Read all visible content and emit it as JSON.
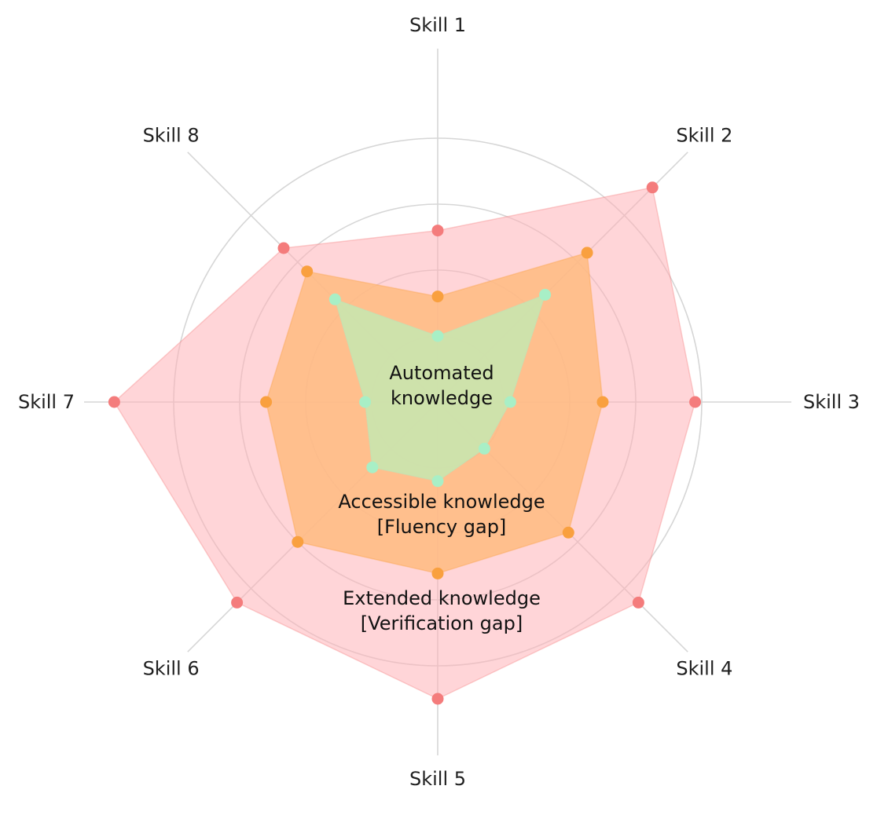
{
  "chart_data": {
    "type": "radar",
    "axes": [
      "Skill 1",
      "Skill 2",
      "Skill 3",
      "Skill 4",
      "Skill 5",
      "Skill 6",
      "Skill 7",
      "Skill 8"
    ],
    "rlim": [
      0,
      4
    ],
    "grid_rings": [
      1,
      2,
      3,
      4
    ],
    "grid": true,
    "series": [
      {
        "key": "extended",
        "label_lines": [
          "Extended knowledge",
          "[Verification gap]"
        ],
        "color": "#f47c7c",
        "fill": "#ffb3b8",
        "values": [
          2.6,
          4.6,
          3.9,
          4.3,
          4.5,
          4.3,
          4.9,
          3.3
        ]
      },
      {
        "key": "accessible",
        "label_lines": [
          "Accessible knowledge",
          "[Fluency gap]"
        ],
        "color": "#f9a03f",
        "fill": "#ffbb80",
        "values": [
          1.6,
          3.2,
          2.5,
          2.8,
          2.6,
          3.0,
          2.6,
          2.8
        ]
      },
      {
        "key": "automated",
        "label_lines": [
          "Automated",
          "knowledge"
        ],
        "color": "#a8efc6",
        "fill": "#c5e8b0",
        "values": [
          1.0,
          2.3,
          1.1,
          1.0,
          1.2,
          1.4,
          1.1,
          2.2
        ]
      }
    ]
  }
}
